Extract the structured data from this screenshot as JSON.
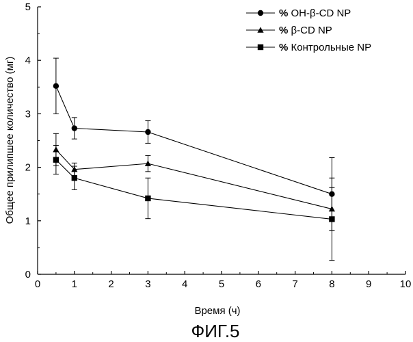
{
  "chart_data": {
    "type": "line",
    "x": [
      0.5,
      1,
      3,
      8
    ],
    "series": [
      {
        "name": "ОН-β-CD NP",
        "prefix": "%",
        "marker": "circle",
        "values": [
          3.52,
          2.73,
          2.66,
          1.5
        ],
        "err": [
          0.52,
          0.2,
          0.21,
          0.68
        ]
      },
      {
        "name": "β-CD NP",
        "prefix": "%",
        "marker": "triangle",
        "values": [
          2.33,
          1.96,
          2.07,
          1.22
        ],
        "err": [
          0.3,
          0.12,
          0.15,
          0.4
        ]
      },
      {
        "name": "Контрольные NP",
        "prefix": "%",
        "marker": "square",
        "values": [
          2.14,
          1.8,
          1.42,
          1.03
        ],
        "err": [
          0.27,
          0.22,
          0.38,
          0.77
        ]
      }
    ],
    "xlabel": "Время (ч)",
    "ylabel": "Общее прилипшее количество (мг)",
    "xlim": [
      0,
      10
    ],
    "ylim": [
      0,
      5
    ],
    "xticks": [
      "0",
      "1",
      "2",
      "3",
      "4",
      "5",
      "6",
      "7",
      "8",
      "9",
      "10"
    ],
    "yticks": [
      "0",
      "1",
      "2",
      "3",
      "4",
      "5"
    ],
    "legend_position": "top-right",
    "grid": false
  },
  "caption": "ФИГ.5"
}
